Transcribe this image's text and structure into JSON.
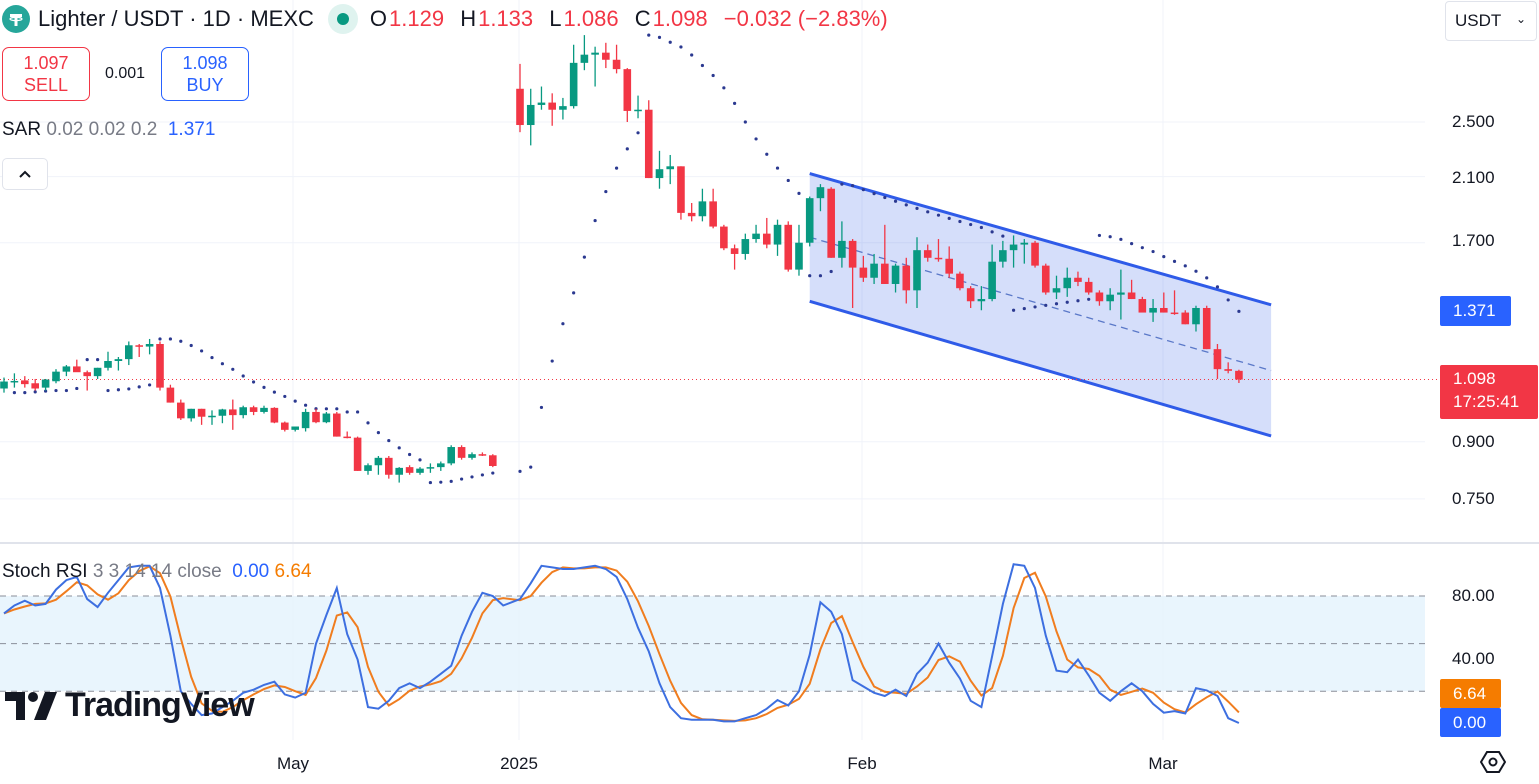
{
  "header": {
    "symbol_title": "Lighter / USDT · 1D · MEXC",
    "ohlc": [
      {
        "label": "O",
        "value": "1.129"
      },
      {
        "label": "H",
        "value": "1.133"
      },
      {
        "label": "L",
        "value": "1.086"
      },
      {
        "label": "C",
        "value": "1.098"
      }
    ],
    "change": "−0.032 (−2.83%)",
    "currency_selector": "USDT"
  },
  "trade": {
    "sell_price": "1.097",
    "sell_label": "SELL",
    "spread": "0.001",
    "buy_price": "1.098",
    "buy_label": "BUY"
  },
  "indicators": {
    "sar": {
      "name": "SAR",
      "params": "0.02 0.02 0.2",
      "value": "1.371"
    },
    "stoch": {
      "name": "Stoch RSI",
      "params": "3 3 14 14 close",
      "k_value": "0.00",
      "d_value": "6.64"
    }
  },
  "icons": {
    "collapse": "chevron-up-icon",
    "symbol": "tether-icon",
    "settings": "settings-icon"
  },
  "colors": {
    "up": "#089981",
    "down": "#f23645",
    "sar": "#2b3990",
    "k": "#3d6fe0",
    "d": "#f07d1f",
    "channel": "#2f5be8",
    "band": "#e3f2fd"
  },
  "axis": {
    "price_ticks": [
      "2.500",
      "2.100",
      "1.700",
      "0.900",
      "0.750"
    ],
    "price_tick_values": [
      2.5,
      2.1,
      1.7,
      0.9,
      0.75
    ],
    "sar_tag": "1.371",
    "last_price_tag": "1.098",
    "countdown": "17:25:41",
    "stoch_ticks": [
      "80.00",
      "40.00"
    ],
    "stoch_tick_values": [
      80,
      40
    ],
    "stoch_d_tag": "6.64",
    "stoch_k_tag": "0.00",
    "time_labels": [
      "May",
      "2025",
      "Feb",
      "Mar"
    ]
  },
  "branding": {
    "logo_text": "TradingView"
  },
  "chart_data": {
    "type": "candlestick",
    "title": "Lighter / USDT · 1D · MEXC",
    "scale": "log",
    "ylim": [
      0.7,
      3.4
    ],
    "last_price": 1.098,
    "ohlc": [
      [
        1.067,
        1.105,
        1.053,
        1.091
      ],
      [
        1.09,
        1.12,
        1.07,
        1.093
      ],
      [
        1.095,
        1.11,
        1.07,
        1.082
      ],
      [
        1.085,
        1.1,
        1.06,
        1.067
      ],
      [
        1.07,
        1.1,
        1.06,
        1.098
      ],
      [
        1.092,
        1.135,
        1.085,
        1.126
      ],
      [
        1.126,
        1.15,
        1.11,
        1.145
      ],
      [
        1.145,
        1.17,
        1.125,
        1.124
      ],
      [
        1.124,
        1.13,
        1.06,
        1.11
      ],
      [
        1.11,
        1.14,
        1.1,
        1.14
      ],
      [
        1.14,
        1.2,
        1.13,
        1.165
      ],
      [
        1.165,
        1.18,
        1.13,
        1.172
      ],
      [
        1.172,
        1.24,
        1.15,
        1.225
      ],
      [
        1.225,
        1.23,
        1.18,
        1.22
      ],
      [
        1.22,
        1.25,
        1.19,
        1.23
      ],
      [
        1.23,
        1.24,
        1.06,
        1.07
      ],
      [
        1.07,
        1.08,
        1.02,
        1.02
      ],
      [
        1.02,
        1.03,
        0.965,
        0.97
      ],
      [
        0.97,
        1.0,
        0.96,
        1.0
      ],
      [
        1.0,
        1.0,
        0.95,
        0.975
      ],
      [
        0.975,
        0.995,
        0.95,
        0.978
      ],
      [
        0.978,
        1.0,
        0.955,
        0.998
      ],
      [
        0.998,
        1.03,
        0.935,
        0.98
      ],
      [
        0.98,
        1.01,
        0.97,
        1.005
      ],
      [
        1.005,
        1.01,
        0.98,
        0.99
      ],
      [
        0.99,
        1.01,
        0.985,
        1.003
      ],
      [
        1.003,
        1.005,
        0.955,
        0.957
      ],
      [
        0.957,
        0.96,
        0.93,
        0.935
      ],
      [
        0.935,
        0.945,
        0.93,
        0.945
      ],
      [
        0.94,
        1.0,
        0.93,
        0.99
      ],
      [
        0.99,
        1.0,
        0.955,
        0.958
      ],
      [
        0.958,
        0.99,
        0.955,
        0.985
      ],
      [
        0.985,
        0.99,
        0.915,
        0.915
      ],
      [
        0.915,
        0.93,
        0.91,
        0.912
      ],
      [
        0.912,
        0.915,
        0.82,
        0.82
      ],
      [
        0.82,
        0.84,
        0.81,
        0.835
      ],
      [
        0.835,
        0.86,
        0.81,
        0.855
      ],
      [
        0.855,
        0.86,
        0.8,
        0.81
      ],
      [
        0.81,
        0.83,
        0.79,
        0.828
      ],
      [
        0.83,
        0.835,
        0.81,
        0.815
      ],
      [
        0.815,
        0.83,
        0.81,
        0.826
      ],
      [
        0.826,
        0.84,
        0.815,
        0.83
      ],
      [
        0.83,
        0.845,
        0.82,
        0.84
      ],
      [
        0.84,
        0.89,
        0.835,
        0.885
      ],
      [
        0.885,
        0.89,
        0.85,
        0.855
      ],
      [
        0.855,
        0.87,
        0.85,
        0.865
      ],
      [
        0.865,
        0.87,
        0.86,
        0.862
      ],
      [
        0.862,
        0.865,
        0.83,
        0.833
      ],
      null,
      [
        2.78,
        3.01,
        2.42,
        2.476
      ],
      [
        2.476,
        2.78,
        2.32,
        2.64
      ],
      [
        2.64,
        2.8,
        2.6,
        2.66
      ],
      [
        2.66,
        2.74,
        2.47,
        2.6
      ],
      [
        2.6,
        2.7,
        2.52,
        2.63
      ],
      [
        2.63,
        3.2,
        2.61,
        3.02
      ],
      [
        3.02,
        3.3,
        2.95,
        3.1
      ],
      [
        3.1,
        3.18,
        2.8,
        3.12
      ],
      [
        3.12,
        3.22,
        2.97,
        3.05
      ],
      [
        3.05,
        3.2,
        2.92,
        2.96
      ],
      [
        2.96,
        2.97,
        2.5,
        2.59
      ],
      [
        2.59,
        2.72,
        2.53,
        2.6
      ],
      [
        2.6,
        2.68,
        2.09,
        2.09
      ],
      [
        2.09,
        2.28,
        2.02,
        2.15
      ],
      [
        2.15,
        2.25,
        2.05,
        2.17
      ],
      [
        2.17,
        2.17,
        1.83,
        1.87
      ],
      [
        1.87,
        1.93,
        1.82,
        1.85
      ],
      [
        1.85,
        2.02,
        1.82,
        1.94
      ],
      [
        1.94,
        2.02,
        1.78,
        1.79
      ],
      [
        1.79,
        1.8,
        1.66,
        1.67
      ],
      [
        1.67,
        1.69,
        1.56,
        1.64
      ],
      [
        1.64,
        1.75,
        1.61,
        1.72
      ],
      [
        1.72,
        1.8,
        1.7,
        1.75
      ],
      [
        1.75,
        1.84,
        1.67,
        1.69
      ],
      [
        1.69,
        1.83,
        1.63,
        1.8
      ],
      [
        1.8,
        1.82,
        1.55,
        1.56
      ],
      [
        1.56,
        1.8,
        1.53,
        1.7
      ],
      [
        1.7,
        1.97,
        1.68,
        1.96
      ],
      [
        1.96,
        2.05,
        1.88,
        2.03
      ],
      [
        2.02,
        2.03,
        1.62,
        1.62
      ],
      [
        1.62,
        1.82,
        1.57,
        1.71
      ],
      [
        1.71,
        1.72,
        1.38,
        1.57
      ],
      [
        1.57,
        1.63,
        1.5,
        1.52
      ],
      [
        1.52,
        1.64,
        1.49,
        1.59
      ],
      [
        1.59,
        1.8,
        1.49,
        1.49
      ],
      [
        1.49,
        1.59,
        1.45,
        1.58
      ],
      [
        1.58,
        1.62,
        1.4,
        1.46
      ],
      [
        1.46,
        1.73,
        1.38,
        1.66
      ],
      [
        1.66,
        1.69,
        1.6,
        1.62
      ],
      [
        1.62,
        1.72,
        1.6,
        1.615
      ],
      [
        1.615,
        1.68,
        1.52,
        1.54
      ],
      [
        1.54,
        1.55,
        1.46,
        1.47
      ],
      [
        1.47,
        1.48,
        1.38,
        1.41
      ],
      [
        1.41,
        1.48,
        1.37,
        1.42
      ],
      [
        1.42,
        1.69,
        1.41,
        1.6
      ],
      [
        1.6,
        1.71,
        1.57,
        1.66
      ],
      [
        1.66,
        1.74,
        1.57,
        1.69
      ],
      [
        1.69,
        1.72,
        1.59,
        1.7
      ],
      [
        1.7,
        1.71,
        1.57,
        1.58
      ],
      [
        1.58,
        1.59,
        1.44,
        1.45
      ],
      [
        1.45,
        1.53,
        1.42,
        1.47
      ],
      [
        1.47,
        1.57,
        1.43,
        1.52
      ],
      [
        1.52,
        1.55,
        1.48,
        1.5
      ],
      [
        1.5,
        1.52,
        1.44,
        1.45
      ],
      [
        1.45,
        1.46,
        1.39,
        1.41
      ],
      [
        1.41,
        1.47,
        1.37,
        1.44
      ],
      [
        1.44,
        1.56,
        1.33,
        1.45
      ],
      [
        1.45,
        1.51,
        1.42,
        1.42
      ],
      [
        1.42,
        1.43,
        1.37,
        1.36
      ],
      [
        1.36,
        1.42,
        1.32,
        1.38
      ],
      [
        1.38,
        1.45,
        1.36,
        1.36
      ],
      [
        1.36,
        1.46,
        1.35,
        1.355
      ],
      [
        1.36,
        1.37,
        1.31,
        1.31
      ],
      [
        1.31,
        1.39,
        1.28,
        1.38
      ],
      [
        1.38,
        1.39,
        1.21,
        1.21
      ],
      [
        1.21,
        1.23,
        1.1,
        1.135
      ],
      [
        1.135,
        1.16,
        1.12,
        1.129
      ],
      [
        1.129,
        1.133,
        1.086,
        1.098
      ]
    ],
    "parabolic_sar": {
      "start": 0.02,
      "increment": 0.02,
      "max": 0.2
    },
    "channel": {
      "start_index": 76,
      "end_index": 119,
      "upper": [
        2.12,
        1.394
      ],
      "lower": [
        1.41,
        0.917
      ],
      "middle": [
        1.73,
        1.13
      ]
    },
    "stoch_rsi": {
      "ylim": [
        0,
        100
      ],
      "bands": [
        80,
        50,
        20
      ],
      "k": [
        69,
        74,
        77,
        74,
        75,
        84,
        90,
        92,
        78,
        73,
        82,
        90,
        98,
        99,
        99,
        85,
        55,
        20,
        12,
        5,
        6,
        10,
        14,
        19,
        21,
        24,
        26,
        18,
        16,
        19,
        50,
        68,
        85,
        56,
        40,
        10,
        9,
        14,
        22,
        25,
        22,
        26,
        31,
        36,
        55,
        70,
        82,
        80,
        74,
        78,
        88,
        99,
        98,
        97,
        97,
        98,
        99,
        97,
        92,
        78,
        60,
        45,
        25,
        10,
        3,
        2,
        2,
        2,
        1,
        1,
        3,
        5,
        9,
        14.5,
        11,
        20,
        43,
        76,
        70,
        56,
        27,
        23,
        19,
        17,
        21,
        17,
        31,
        38,
        50,
        38,
        28,
        14,
        10,
        42,
        75,
        100,
        99,
        85,
        55,
        33,
        32,
        40,
        30,
        19,
        14,
        20,
        25,
        20,
        12,
        6.5,
        7.5,
        6,
        22,
        20.5,
        17,
        3,
        0
      ],
      "d_smoothing": 3
    }
  }
}
